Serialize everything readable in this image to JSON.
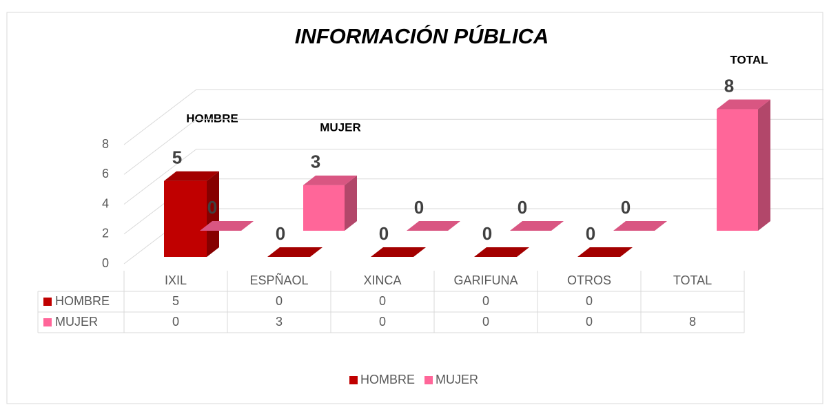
{
  "chart_data": {
    "type": "bar3d",
    "title": "INFORMACIÓN PÚBLICA",
    "categories": [
      "IXIL",
      "ESPÑAOL",
      "XINCA",
      "GARIFUNA",
      "OTROS",
      "TOTAL"
    ],
    "series": [
      {
        "name": "HOMBRE",
        "color": "#c00000",
        "values": [
          5,
          0,
          0,
          0,
          0,
          null
        ]
      },
      {
        "name": "MUJER",
        "color": "#ff6699",
        "values": [
          0,
          3,
          0,
          0,
          0,
          8
        ]
      }
    ],
    "ylim": [
      0,
      8
    ],
    "yticks": [
      0,
      2,
      4,
      6,
      8
    ],
    "grid": true,
    "annotations": [
      "HOMBRE",
      "MUJER",
      "TOTAL"
    ],
    "legend": "bottom",
    "data_table": true
  }
}
